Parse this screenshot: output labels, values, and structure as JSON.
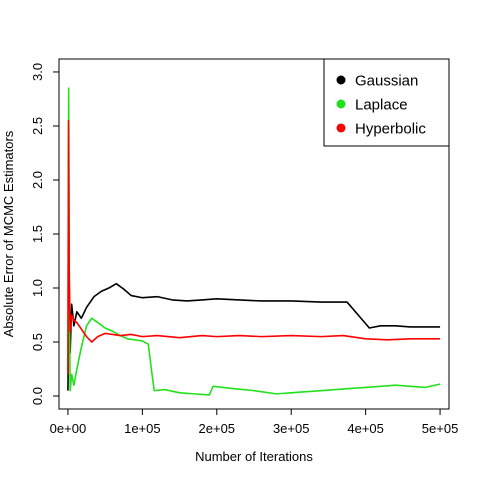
{
  "chart_data": {
    "type": "line",
    "title": "",
    "xlabel": "Number of Iterations",
    "ylabel": "Absolute Error of MCMC Estimators",
    "xlim": [
      -12000,
      512000
    ],
    "ylim": [
      -0.12,
      3.12
    ],
    "x_ticks": [
      0,
      100000,
      200000,
      300000,
      400000,
      500000
    ],
    "x_tick_labels": [
      "0e+00",
      "1e+05",
      "2e+05",
      "3e+05",
      "4e+05",
      "5e+05"
    ],
    "y_ticks": [
      0.0,
      0.5,
      1.0,
      1.5,
      2.0,
      2.5,
      3.0
    ],
    "y_tick_labels": [
      "0.0",
      "0.5",
      "1.0",
      "1.5",
      "2.0",
      "2.5",
      "3.0"
    ],
    "legend_position": "top-right",
    "series": [
      {
        "name": "Gaussian",
        "color": "#000000",
        "points": [
          [
            0,
            0.05
          ],
          [
            1500,
            1.2
          ],
          [
            3000,
            0.4
          ],
          [
            5000,
            0.85
          ],
          [
            8000,
            0.65
          ],
          [
            12000,
            0.78
          ],
          [
            18000,
            0.72
          ],
          [
            25000,
            0.82
          ],
          [
            35000,
            0.92
          ],
          [
            45000,
            0.97
          ],
          [
            55000,
            1.0
          ],
          [
            65000,
            1.04
          ],
          [
            75000,
            0.99
          ],
          [
            85000,
            0.93
          ],
          [
            100000,
            0.91
          ],
          [
            120000,
            0.92
          ],
          [
            140000,
            0.89
          ],
          [
            160000,
            0.88
          ],
          [
            180000,
            0.89
          ],
          [
            200000,
            0.9
          ],
          [
            230000,
            0.89
          ],
          [
            260000,
            0.88
          ],
          [
            300000,
            0.88
          ],
          [
            340000,
            0.87
          ],
          [
            375000,
            0.87
          ],
          [
            390000,
            0.75
          ],
          [
            405000,
            0.63
          ],
          [
            420000,
            0.65
          ],
          [
            440000,
            0.65
          ],
          [
            460000,
            0.64
          ],
          [
            480000,
            0.64
          ],
          [
            500000,
            0.64
          ]
        ]
      },
      {
        "name": "Laplace",
        "color": "#22e01c",
        "points": [
          [
            0,
            0.3
          ],
          [
            1000,
            2.85
          ],
          [
            2000,
            0.8
          ],
          [
            3000,
            0.05
          ],
          [
            5000,
            0.2
          ],
          [
            8000,
            0.1
          ],
          [
            12000,
            0.25
          ],
          [
            18000,
            0.45
          ],
          [
            25000,
            0.65
          ],
          [
            32000,
            0.72
          ],
          [
            40000,
            0.68
          ],
          [
            50000,
            0.63
          ],
          [
            60000,
            0.6
          ],
          [
            70000,
            0.56
          ],
          [
            80000,
            0.53
          ],
          [
            90000,
            0.52
          ],
          [
            100000,
            0.51
          ],
          [
            108000,
            0.48
          ],
          [
            113000,
            0.2
          ],
          [
            116000,
            0.05
          ],
          [
            130000,
            0.06
          ],
          [
            150000,
            0.03
          ],
          [
            170000,
            0.02
          ],
          [
            190000,
            0.01
          ],
          [
            195000,
            0.09
          ],
          [
            220000,
            0.07
          ],
          [
            250000,
            0.05
          ],
          [
            280000,
            0.02
          ],
          [
            300000,
            0.03
          ],
          [
            320000,
            0.04
          ],
          [
            340000,
            0.05
          ],
          [
            360000,
            0.06
          ],
          [
            380000,
            0.07
          ],
          [
            400000,
            0.08
          ],
          [
            420000,
            0.09
          ],
          [
            440000,
            0.1
          ],
          [
            460000,
            0.09
          ],
          [
            480000,
            0.08
          ],
          [
            500000,
            0.11
          ]
        ]
      },
      {
        "name": "Hyperbolic",
        "color": "#ff0000",
        "points": [
          [
            0,
            0.2
          ],
          [
            800,
            2.55
          ],
          [
            1800,
            1.05
          ],
          [
            3000,
            0.6
          ],
          [
            5000,
            0.75
          ],
          [
            8000,
            0.7
          ],
          [
            12000,
            0.68
          ],
          [
            18000,
            0.62
          ],
          [
            25000,
            0.55
          ],
          [
            32000,
            0.5
          ],
          [
            40000,
            0.55
          ],
          [
            50000,
            0.58
          ],
          [
            60000,
            0.57
          ],
          [
            70000,
            0.56
          ],
          [
            85000,
            0.57
          ],
          [
            100000,
            0.55
          ],
          [
            120000,
            0.56
          ],
          [
            150000,
            0.54
          ],
          [
            180000,
            0.56
          ],
          [
            200000,
            0.55
          ],
          [
            230000,
            0.56
          ],
          [
            260000,
            0.55
          ],
          [
            300000,
            0.56
          ],
          [
            340000,
            0.55
          ],
          [
            370000,
            0.56
          ],
          [
            400000,
            0.53
          ],
          [
            430000,
            0.52
          ],
          [
            460000,
            0.53
          ],
          [
            500000,
            0.53
          ]
        ]
      }
    ]
  }
}
